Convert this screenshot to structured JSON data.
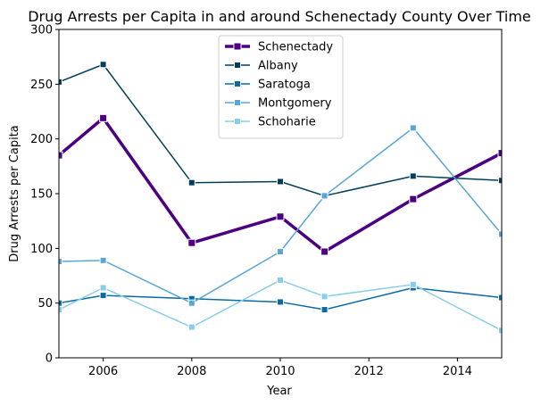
{
  "chart_data": {
    "type": "line",
    "title": "Drug Arrests per Capita in and around Schenectady County Over Time",
    "xlabel": "Year",
    "ylabel": "Drug Arrests per Capita",
    "xlim": [
      2005,
      2015
    ],
    "ylim": [
      0,
      300
    ],
    "xticks": [
      2006,
      2008,
      2010,
      2012,
      2014
    ],
    "yticks": [
      0,
      50,
      100,
      150,
      200,
      250,
      300
    ],
    "grid": false,
    "legend_position": "top-center",
    "x": [
      2005,
      2006,
      2008,
      2010,
      2011,
      2013,
      2015
    ],
    "series": [
      {
        "name": "Schenectady",
        "color": "#4b0082",
        "width": 3.5,
        "values": [
          185,
          219,
          105,
          129,
          97,
          145,
          187
        ]
      },
      {
        "name": "Albany",
        "color": "#003f5c",
        "width": 1.5,
        "values": [
          252,
          268,
          160,
          161,
          148,
          166,
          162
        ]
      },
      {
        "name": "Saratoga",
        "color": "#0a6aa1",
        "width": 1.5,
        "values": [
          50,
          57,
          54,
          51,
          44,
          64,
          55
        ]
      },
      {
        "name": "Montgomery",
        "color": "#58a5d6",
        "width": 1.5,
        "values": [
          88,
          89,
          50,
          97,
          148,
          210,
          113
        ]
      },
      {
        "name": "Schoharie",
        "color": "#87cdea",
        "width": 1.5,
        "values": [
          44,
          64,
          28,
          71,
          56,
          67,
          25
        ]
      }
    ]
  }
}
